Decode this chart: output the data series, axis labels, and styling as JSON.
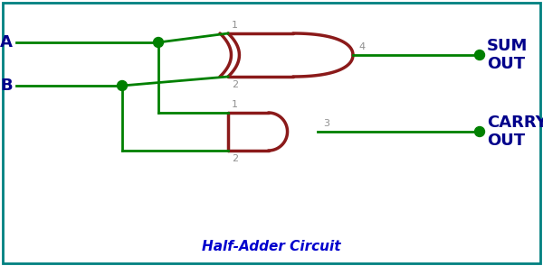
{
  "bg_color": "#ffffff",
  "border_color": "#008080",
  "wire_color": "#008000",
  "gate_color": "#8B1A1A",
  "label_color": "#00008B",
  "dot_color": "#008000",
  "title": "Half-Adder Circuit",
  "title_color": "#0000CD",
  "title_fontsize": 11,
  "pin_label_color": "#909090",
  "input_A_label": "A",
  "input_B_label": "B",
  "sum_label": "SUM\nOUT",
  "carry_label": "CARRY\nOUT",
  "xor_pin1": "1",
  "xor_pin2": "2",
  "xor_out_pin": "4",
  "and_pin1": "1",
  "and_pin2": "2",
  "and_out_pin": "3",
  "figsize": [
    6.0,
    2.95
  ],
  "dpi": 100
}
